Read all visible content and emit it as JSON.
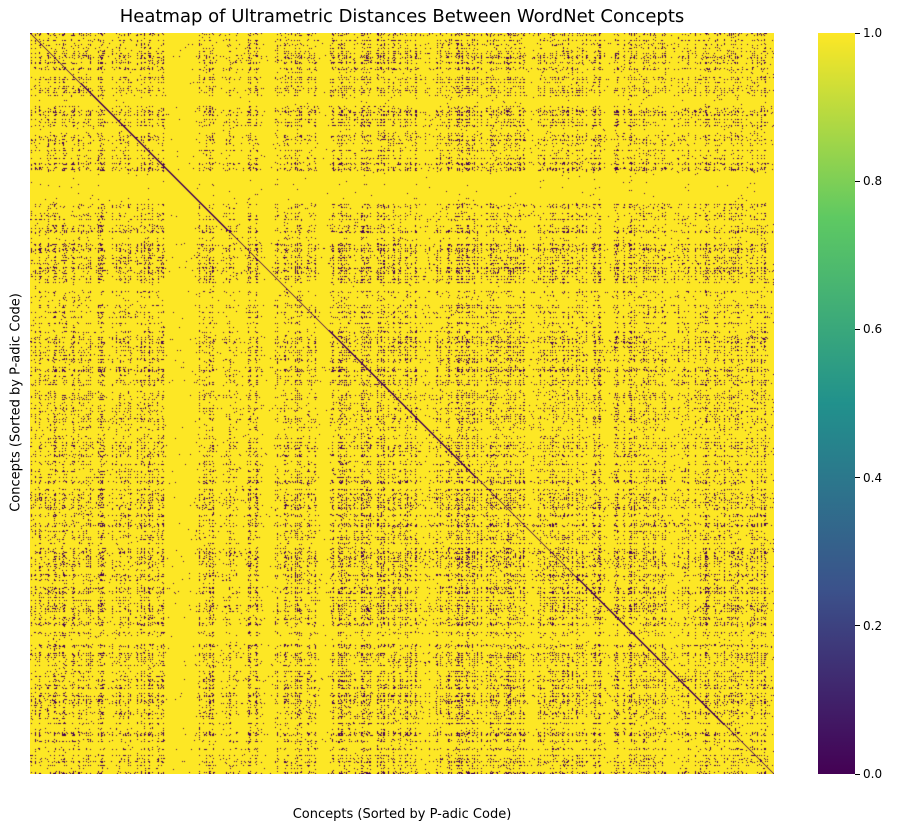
{
  "chart_data": {
    "type": "heatmap",
    "title": "Heatmap of Ultrametric Distances Between WordNet Concepts",
    "xlabel": "Concepts (Sorted by P-adic Code)",
    "ylabel": "Concepts (Sorted by P-adic Code)",
    "x_tick_labels": [],
    "y_tick_labels": [],
    "colormap": "viridis",
    "colormap_stops": [
      "#440154",
      "#3b528b",
      "#21918c",
      "#5ec962",
      "#fde725"
    ],
    "value_range": [
      0.0,
      1.0
    ],
    "dominant_value": 1.0,
    "diagonal_value": 0.0,
    "off_diagonal_sparse_value": 0.0,
    "colorbar": {
      "ticks": [
        {
          "value": 0.0,
          "label": "0.0"
        },
        {
          "value": 0.2,
          "label": "0.2"
        },
        {
          "value": 0.4,
          "label": "0.4"
        },
        {
          "value": 0.6,
          "label": "0.6"
        },
        {
          "value": 0.8,
          "label": "0.8"
        },
        {
          "value": 1.0,
          "label": "1.0"
        }
      ]
    },
    "grid": false,
    "legend_position": "right"
  }
}
